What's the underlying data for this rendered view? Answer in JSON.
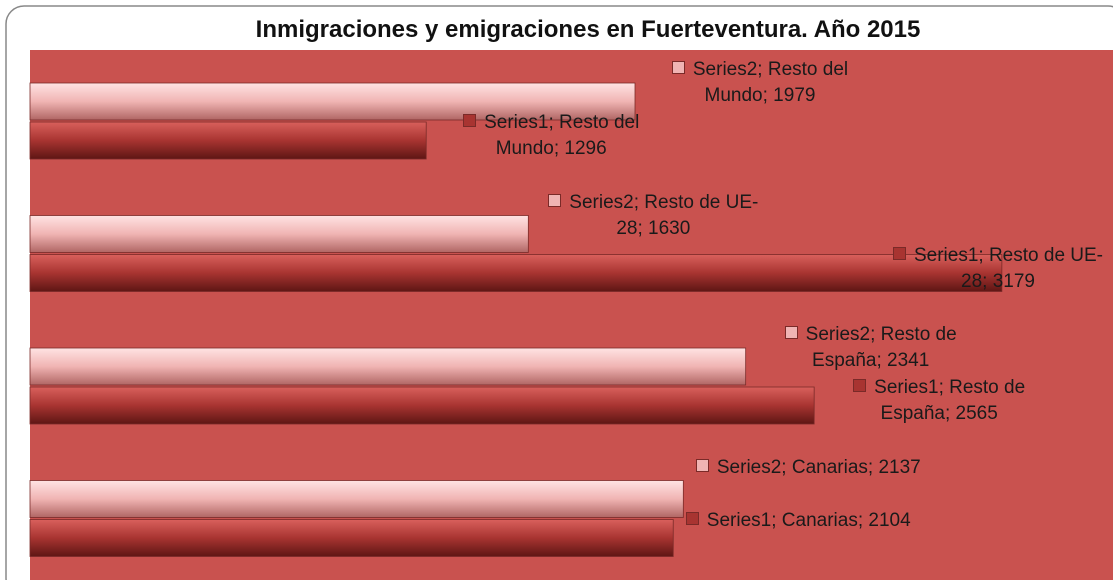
{
  "chart_data": {
    "type": "bar",
    "orientation": "horizontal",
    "title": "Inmigraciones y emigraciones en Fuerteventura. Año 2015",
    "categories": [
      "Canarias",
      "Resto de España",
      "Resto de UE-28",
      "Resto del Mundo"
    ],
    "series": [
      {
        "name": "Series1",
        "color": "#a83431",
        "values": [
          2104,
          2565,
          3179,
          1296
        ],
        "value_labels": [
          "Series1; Canarias; 2104",
          "Series1; Resto de España; 2565",
          "Series1; Resto de UE-28; 3179",
          "Series1; Resto del Mundo; 1296"
        ]
      },
      {
        "name": "Series2",
        "color": "#f0b4b3",
        "values": [
          2137,
          2341,
          1630,
          1979
        ],
        "value_labels": [
          "Series2; Canarias; 2137",
          "Series2; Resto de España; 2341",
          "Series2; Resto de UE-28; 1630",
          "Series2; Resto del Mundo; 1979"
        ]
      }
    ],
    "xlim": [
      0,
      3500
    ],
    "plot_background": "#c9524f"
  }
}
